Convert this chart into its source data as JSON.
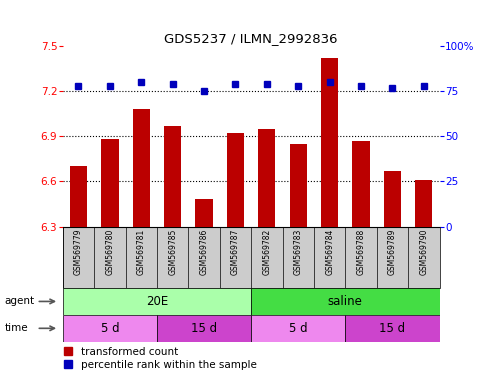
{
  "title": "GDS5237 / ILMN_2992836",
  "samples": [
    "GSM569779",
    "GSM569780",
    "GSM569781",
    "GSM569785",
    "GSM569786",
    "GSM569787",
    "GSM569782",
    "GSM569783",
    "GSM569784",
    "GSM569788",
    "GSM569789",
    "GSM569790"
  ],
  "bar_values": [
    6.7,
    6.88,
    7.08,
    6.97,
    6.48,
    6.92,
    6.95,
    6.85,
    7.42,
    6.87,
    6.67,
    6.61
  ],
  "percentile_values": [
    78,
    78,
    80,
    79,
    75,
    79,
    79,
    78,
    80,
    78,
    77,
    78
  ],
  "ylim_left": [
    6.3,
    7.5
  ],
  "ylim_right": [
    0,
    100
  ],
  "yticks_left": [
    6.3,
    6.6,
    6.9,
    7.2,
    7.5
  ],
  "yticks_right": [
    0,
    25,
    50,
    75,
    100
  ],
  "bar_color": "#bb0000",
  "dot_color": "#0000bb",
  "agent_groups": [
    {
      "label": "20E",
      "start": 0,
      "end": 6,
      "color": "#aaffaa"
    },
    {
      "label": "saline",
      "start": 6,
      "end": 12,
      "color": "#44dd44"
    }
  ],
  "time_groups": [
    {
      "label": "5 d",
      "start": 0,
      "end": 3,
      "color": "#ee88ee"
    },
    {
      "label": "15 d",
      "start": 3,
      "end": 6,
      "color": "#cc44cc"
    },
    {
      "label": "5 d",
      "start": 6,
      "end": 9,
      "color": "#ee88ee"
    },
    {
      "label": "15 d",
      "start": 9,
      "end": 12,
      "color": "#cc44cc"
    }
  ],
  "legend_red_label": "transformed count",
  "legend_blue_label": "percentile rank within the sample"
}
